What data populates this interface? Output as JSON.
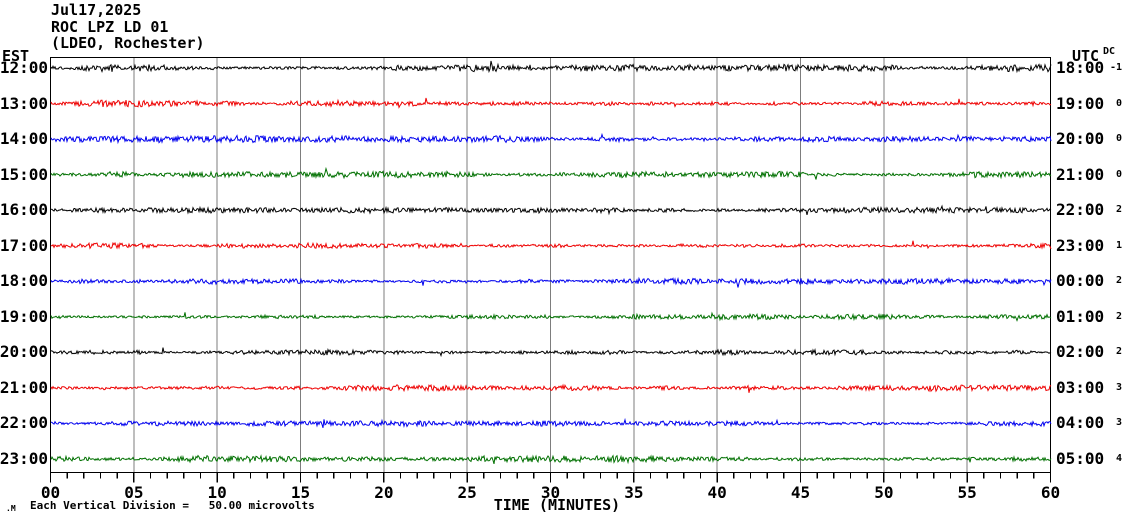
{
  "title": {
    "date": "Jul17,2025",
    "station": "ROC LPZ LD 01",
    "network": "(LDEO, Rochester)"
  },
  "axis": {
    "left_header": "EST",
    "right_header": "UTC",
    "dc_header": "DC",
    "x_label": "TIME (MINUTES)",
    "x_ticks": [
      "00",
      "05",
      "10",
      "15",
      "20",
      "25",
      "30",
      "35",
      "40",
      "45",
      "50",
      "55",
      "60"
    ],
    "footer_note": "Each Vertical Division =   50.00 microvolts",
    "corner_mark": ".M"
  },
  "chart_data": {
    "type": "line",
    "title": "ROC LPZ LD 01 helicorder, Jul17,2025 (LDEO, Rochester)",
    "xlabel": "TIME (MINUTES)",
    "x_range_minutes": [
      0,
      60
    ],
    "x_major_tick_step_minutes": 5,
    "x_minor_tick_step_minutes": 1,
    "vertical_division_microvolts": 50.0,
    "grid": true,
    "grid_color": "#7d7d7d",
    "border_color": "#000000",
    "palette": {
      "black": "#000000",
      "red": "#ee0000",
      "blue": "#0000ee",
      "green": "#007000"
    },
    "traces": [
      {
        "est": "12:00",
        "utc": "18:00",
        "dc": "-1",
        "color": "black",
        "amp": 2.0,
        "seed": 101
      },
      {
        "est": "13:00",
        "utc": "19:00",
        "dc": "0",
        "color": "red",
        "amp": 1.9,
        "seed": 202
      },
      {
        "est": "14:00",
        "utc": "20:00",
        "dc": "0",
        "color": "blue",
        "amp": 1.9,
        "seed": 303
      },
      {
        "est": "15:00",
        "utc": "21:00",
        "dc": "0",
        "color": "green",
        "amp": 1.7,
        "seed": 404
      },
      {
        "est": "16:00",
        "utc": "22:00",
        "dc": "2",
        "color": "black",
        "amp": 1.5,
        "seed": 505
      },
      {
        "est": "17:00",
        "utc": "23:00",
        "dc": "1",
        "color": "red",
        "amp": 1.7,
        "seed": 606
      },
      {
        "est": "18:00",
        "utc": "00:00",
        "dc": "2",
        "color": "blue",
        "amp": 1.6,
        "seed": 707
      },
      {
        "est": "19:00",
        "utc": "01:00",
        "dc": "2",
        "color": "green",
        "amp": 1.6,
        "seed": 808
      },
      {
        "est": "20:00",
        "utc": "02:00",
        "dc": "2",
        "color": "black",
        "amp": 1.5,
        "seed": 909
      },
      {
        "est": "21:00",
        "utc": "03:00",
        "dc": "3",
        "color": "red",
        "amp": 1.7,
        "seed": 1010
      },
      {
        "est": "22:00",
        "utc": "04:00",
        "dc": "3",
        "color": "blue",
        "amp": 1.5,
        "seed": 1111
      },
      {
        "est": "23:00",
        "utc": "05:00",
        "dc": "4",
        "color": "green",
        "amp": 1.8,
        "seed": 1212
      }
    ],
    "content_note": "Twelve hourly helicorder traces showing continuous low-amplitude background seismic noise; no discrete events visible. Trace waveforms are unlabeled noise, reproduced as seeded pseudo-random jitter of matching amplitude (~2 px, occasional small bursts)."
  }
}
